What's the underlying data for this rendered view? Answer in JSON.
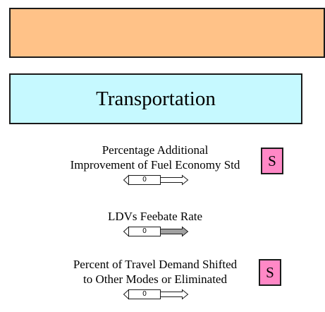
{
  "colors": {
    "top_panel_fill": "#ffc288",
    "title_panel_fill": "#c6f9ff",
    "s_button_fill": "#ff88c6",
    "slider_light_arrow": "#ffffff",
    "slider_dark_arrow": "#a0a0a0"
  },
  "title": "Transportation",
  "controls": [
    {
      "label_line1": "Percentage Additional",
      "label_line2": "Improvement of Fuel Economy Std",
      "value": "0",
      "s_button": "S"
    },
    {
      "label_line1": "LDVs Feebate Rate",
      "value": "0"
    },
    {
      "label_line1": "Percent of Travel Demand Shifted",
      "label_line2": "to Other Modes or Eliminated",
      "value": "0",
      "s_button": "S"
    }
  ]
}
